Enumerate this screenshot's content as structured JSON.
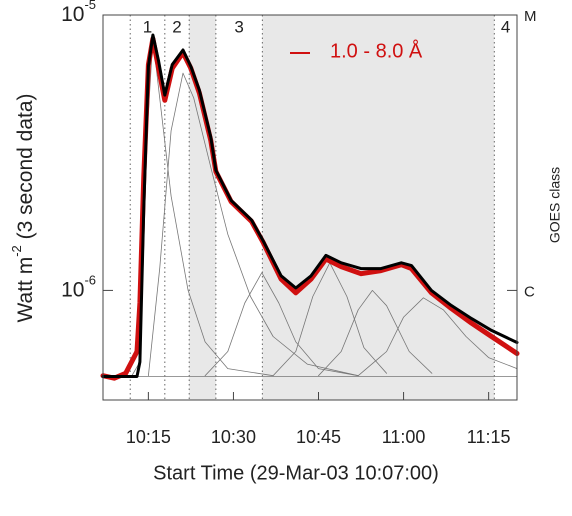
{
  "chart_data": {
    "type": "line",
    "xlabel": "Start Time (29-Mar-03 10:07:00)",
    "ylabel": {
      "text": "Watt m",
      "sup": "-2",
      "rest": " (3 second data)"
    },
    "y2label": "GOES class",
    "yscale": "log",
    "xlim": [
      0,
      73
    ],
    "ylim": [
      4e-07,
      1e-05
    ],
    "xticks": [
      {
        "value": 8,
        "label": "10:15"
      },
      {
        "value": 23,
        "label": "10:30"
      },
      {
        "value": 38,
        "label": "10:45"
      },
      {
        "value": 53,
        "label": "11:00"
      },
      {
        "value": 68,
        "label": "11:15"
      }
    ],
    "yticks": [
      {
        "value": 1e-05,
        "label": "10",
        "exponent": "-5"
      },
      {
        "value": 1e-06,
        "label": "10",
        "exponent": "-6"
      }
    ],
    "y2ticks": [
      {
        "value": 1e-05,
        "label": "M"
      },
      {
        "value": 1e-06,
        "label": "C"
      }
    ],
    "markers": [
      4.8,
      10.9,
      15.2,
      19.9,
      28.1,
      69
    ],
    "shaded": [
      [
        15.2,
        19.9
      ],
      [
        28.1,
        69
      ]
    ],
    "shade_color": "#e8e8e8",
    "periods": [
      {
        "label": "1",
        "start": 4.8,
        "end": 10.9
      },
      {
        "label": "2",
        "start": 10.9,
        "end": 15.2
      },
      {
        "label": "3",
        "start": 19.9,
        "end": 28.1
      },
      {
        "label": "4",
        "start": 69,
        "end": 73
      }
    ],
    "series": [
      {
        "name": "1.0 - 8.0 Å",
        "color": "#d01010",
        "width": 5,
        "x": [
          0,
          2,
          4,
          6,
          6.5,
          7.2,
          8,
          8.8,
          9.8,
          10.9,
          12.2,
          14.1,
          15.5,
          17,
          19,
          19.9,
          22.6,
          26.2,
          28.2,
          31.4,
          34,
          36.7,
          39.3,
          42,
          45.5,
          49,
          52.6,
          54.4,
          57.9,
          61.4,
          65,
          68.5,
          73
        ],
        "values": [
          4.9e-07,
          4.8e-07,
          5e-07,
          6e-07,
          9e-07,
          2.6e-06,
          6.6e-06,
          8.2e-06,
          6.4e-06,
          4.9e-06,
          6.4e-06,
          7.3e-06,
          6.4e-06,
          5.2e-06,
          3.5e-06,
          2.7e-06,
          2.1e-06,
          1.78e-06,
          1.5e-06,
          1.1e-06,
          9.8e-07,
          1.1e-06,
          1.3e-06,
          1.22e-06,
          1.15e-06,
          1.18e-06,
          1.24e-06,
          1.2e-06,
          9.8e-07,
          8.6e-07,
          7.6e-07,
          6.8e-07,
          5.9e-07
        ]
      },
      {
        "color": "#000000",
        "width": 3,
        "x": [
          0,
          6,
          6.5,
          7.2,
          8,
          8.8,
          9.8,
          10.9,
          12.2,
          14.1,
          15.5,
          17,
          19,
          19.9,
          22.6,
          26.2,
          28.2,
          31.4,
          34,
          36.7,
          39.3,
          42,
          45.5,
          49,
          52.6,
          54.4,
          57.9,
          61.4,
          65,
          68.5,
          73
        ],
        "values": [
          4.87e-07,
          4.87e-07,
          5.5e-07,
          2e-06,
          6.5e-06,
          8.46e-06,
          6.8e-06,
          5.12e-06,
          6.6e-06,
          7.46e-06,
          6.5e-06,
          5.33e-06,
          3.6e-06,
          2.73e-06,
          2.12e-06,
          1.8e-06,
          1.52e-06,
          1.13e-06,
          1.02e-06,
          1.13e-06,
          1.34e-06,
          1.26e-06,
          1.2e-06,
          1.2e-06,
          1.26e-06,
          1.23e-06,
          1e-06,
          8.82e-07,
          7.9e-07,
          7.16e-07,
          6.47e-07
        ]
      },
      {
        "color": "#777777",
        "width": 0.8,
        "x": [
          0,
          73
        ],
        "values": [
          4.87e-07,
          4.87e-07
        ]
      },
      {
        "color": "#777777",
        "width": 0.8,
        "x": [
          5,
          6.5,
          7.5,
          8.8,
          10,
          12,
          15,
          18,
          22,
          30
        ],
        "values": [
          4.87e-07,
          5.5e-07,
          3e-06,
          8.2e-06,
          5e-06,
          2.2e-06,
          1e-06,
          6.5e-07,
          5.2e-07,
          4.9e-07
        ]
      },
      {
        "color": "#777777",
        "width": 0.8,
        "x": [
          8,
          10,
          12,
          14.1,
          16,
          19,
          22,
          26,
          30,
          36,
          45
        ],
        "values": [
          4.9e-07,
          1.2e-06,
          3.8e-06,
          6.15e-06,
          5e-06,
          2.8e-06,
          1.6e-06,
          9.5e-07,
          6.8e-07,
          5.4e-07,
          4.9e-07
        ]
      },
      {
        "color": "#777777",
        "width": 0.8,
        "x": [
          18,
          22,
          25,
          28,
          31,
          34,
          38,
          45
        ],
        "values": [
          4.9e-07,
          6e-07,
          9e-07,
          1.16e-06,
          9e-07,
          6.5e-07,
          5.2e-07,
          4.9e-07
        ]
      },
      {
        "color": "#777777",
        "width": 0.8,
        "x": [
          30,
          34,
          37,
          40,
          43,
          46,
          50
        ],
        "values": [
          4.9e-07,
          6e-07,
          9.5e-07,
          1.26e-06,
          9.5e-07,
          6.2e-07,
          5e-07
        ]
      },
      {
        "color": "#777777",
        "width": 0.8,
        "x": [
          38,
          42,
          45,
          47.5,
          50,
          54,
          58
        ],
        "values": [
          4.9e-07,
          6e-07,
          8.5e-07,
          1e-06,
          8.8e-07,
          6e-07,
          5e-07
        ]
      },
      {
        "color": "#777777",
        "width": 0.8,
        "x": [
          45,
          50,
          53,
          56.5,
          60,
          64,
          68,
          73
        ],
        "values": [
          4.9e-07,
          6e-07,
          8e-07,
          9.4e-07,
          8.5e-07,
          6.8e-07,
          5.7e-07,
          5.2e-07
        ]
      }
    ]
  }
}
